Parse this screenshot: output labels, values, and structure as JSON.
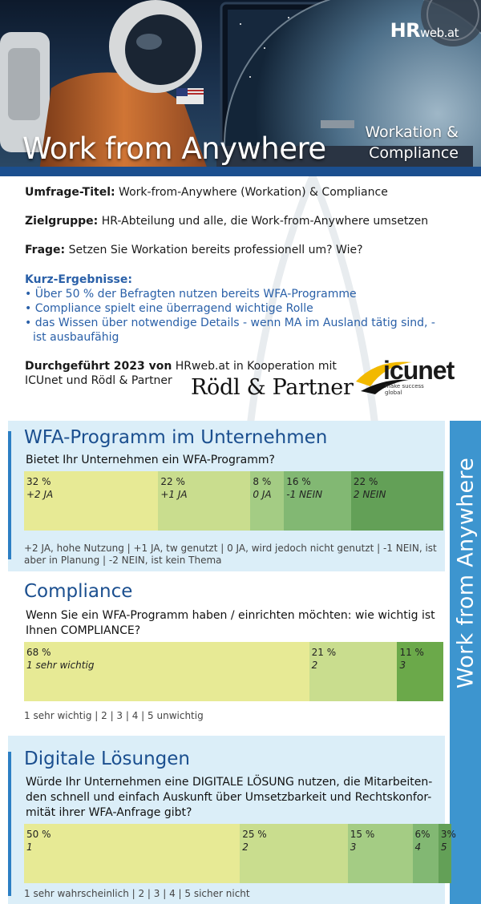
{
  "header": {
    "title": "Work from Anywhere",
    "subtitle_line1": "Workation &",
    "subtitle_line2": "Compliance",
    "brand": "HR",
    "brand_suffix": "web.at"
  },
  "intro": {
    "title_label": "Umfrage-Titel:",
    "title_value": " Work-from-Anywhere (Workation) & Compliance",
    "ziel_label": "Zielgruppe:",
    "ziel_value": " HR-Abteilung und alle, die Work-from-Anywhere umsetzen",
    "frage_label": "Frage:",
    "frage_value": " Setzen Sie Workation bereits professionell um? Wie?",
    "kurz_heading": "Kurz-Ergebnisse:",
    "kurz_items": [
      "• Über 50 % der Befragten nutzen bereits WFA-Programme",
      "• Compliance spielt eine überragend wichtige Rolle",
      "• das Wissen über notwendige Details - wenn MA im Ausland tätig sind, - ist ausbaufähig"
    ],
    "durch_label": "Durchgeführt 2023 von",
    "durch_value": " HRweb.at in Kooperation mit ICUnet und Rödl & Partner",
    "partner1": "Rödl & Partner",
    "partner2": "icunet",
    "partner2_tag1": "make success",
    "partner2_tag2": "global"
  },
  "side_label": "Work from Anywhere",
  "sections": [
    {
      "title": "WFA-Programm im Unternehmen",
      "question": "Bietet Ihr Unternehmen ein WFA-Programm?",
      "legend": "+2 JA, hohe Nutzung | +1 JA, tw genutzt | 0 JA, wird jedoch nicht genutzt | -1 NEIN, ist aber in Planung | -2 NEIN, ist kein Thema"
    },
    {
      "title": "Compliance",
      "question": "Wenn Sie ein WFA-Programm haben / einrichten möchten: wie wichtig ist Ihnen COMPLIANCE?",
      "legend": "1 sehr wichtig | 2 | 3 | 4 | 5 unwichtig"
    },
    {
      "title": "Digitale Lösungen",
      "question": "Würde Ihr Unternehmen eine DIGITALE LÖSUNG nutzen, die Mitarbeiten-den schnell und einfach Auskunft über Umsetzbarkeit und Rechtskonfor-mität ihrer WFA-Anfrage gibt?",
      "legend": "1 sehr wahrscheinlich | 2 | 3 | 4 | 5 sicher nicht"
    }
  ],
  "chart_data": [
    {
      "type": "bar",
      "stacked": true,
      "orientation": "horizontal",
      "categories": [
        "+2 JA",
        "+1 JA",
        "0 JA",
        "-1 NEIN",
        "2 NEIN"
      ],
      "values": [
        32,
        22,
        8,
        16,
        22
      ],
      "value_labels": [
        "32 %",
        "22 %",
        "8 %",
        "16 %",
        "22 %"
      ],
      "colors": [
        "#e7ea95",
        "#c9dd8e",
        "#a4cc84",
        "#82b873",
        "#63a057"
      ]
    },
    {
      "type": "bar",
      "stacked": true,
      "orientation": "horizontal",
      "categories": [
        "1 sehr wichtig",
        "2",
        "3"
      ],
      "values": [
        68,
        21,
        11
      ],
      "value_labels": [
        "68 %",
        "21 %",
        "11 %"
      ],
      "colors": [
        "#e7ea95",
        "#c9dd8e",
        "#6ba94a"
      ]
    },
    {
      "type": "bar",
      "stacked": true,
      "orientation": "horizontal",
      "categories": [
        "1",
        "2",
        "3",
        "4",
        "5"
      ],
      "values": [
        50,
        25,
        15,
        6,
        3
      ],
      "value_labels": [
        "50 %",
        "25 %",
        "15 %",
        "6%",
        "3%"
      ],
      "colors": [
        "#e7ea95",
        "#c9dd8e",
        "#a4cc84",
        "#82b873",
        "#63a057"
      ]
    }
  ]
}
